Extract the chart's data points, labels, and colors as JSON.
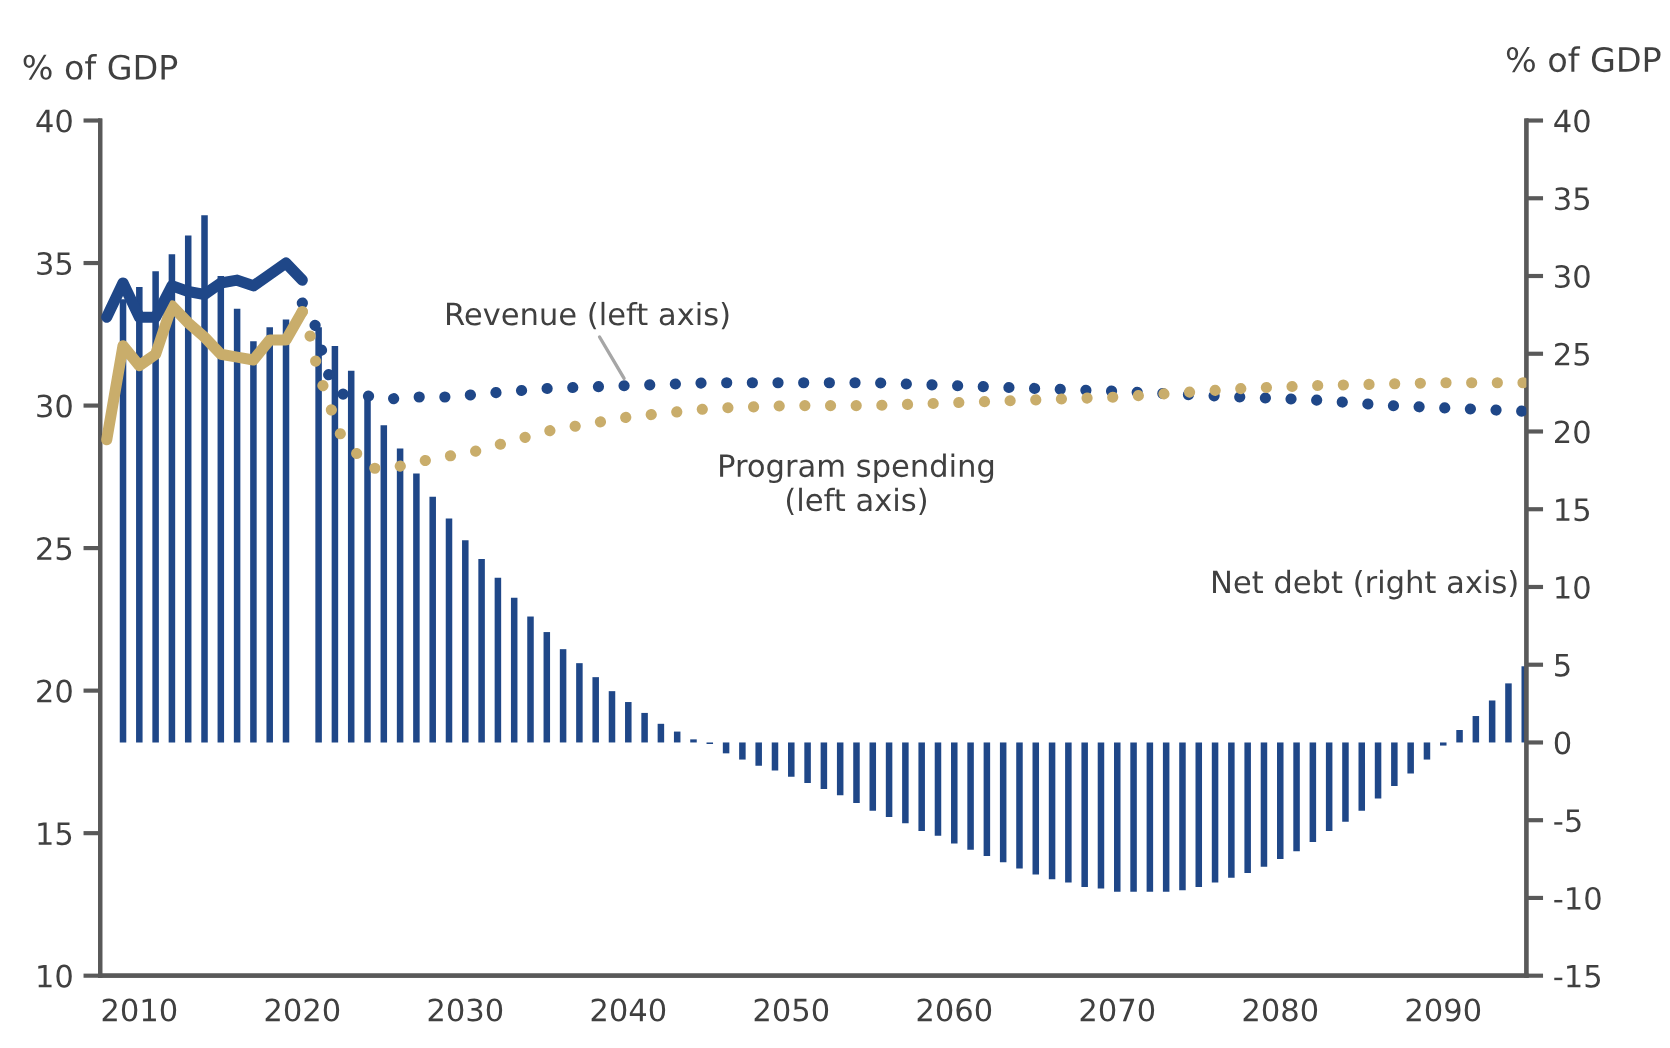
{
  "chart_data": {
    "type": "line",
    "ylabel": "% of GDP",
    "y2label": "% of GDP",
    "xlim": [
      2007.6,
      2095.1
    ],
    "xticks": [
      2010,
      2020,
      2030,
      2040,
      2050,
      2060,
      2070,
      2080,
      2090
    ],
    "ylim": [
      10,
      40
    ],
    "yticks": [
      10,
      15,
      20,
      25,
      30,
      35,
      40
    ],
    "y2lim": [
      -15,
      40
    ],
    "y2ticks": [
      -15,
      -10,
      -5,
      0,
      5,
      10,
      15,
      20,
      25,
      30,
      35,
      40
    ],
    "grid": false,
    "legend": false,
    "marker": "none",
    "series": [
      {
        "name": "Net debt (right axis)",
        "type": "bar",
        "axis": "y2",
        "color": "#1f4788",
        "x": [
          2009,
          2010,
          2011,
          2012,
          2013,
          2014,
          2015,
          2016,
          2017,
          2018,
          2019,
          2020,
          2021,
          2022,
          2023,
          2024,
          2025,
          2026,
          2027,
          2028,
          2029,
          2030,
          2031,
          2032,
          2033,
          2034,
          2035,
          2036,
          2037,
          2038,
          2039,
          2040,
          2041,
          2042,
          2043,
          2044,
          2045,
          2046,
          2047,
          2048,
          2049,
          2050,
          2051,
          2052,
          2053,
          2054,
          2055,
          2056,
          2057,
          2058,
          2059,
          2060,
          2061,
          2062,
          2063,
          2064,
          2065,
          2066,
          2067,
          2068,
          2069,
          2070,
          2071,
          2072,
          2073,
          2074,
          2075,
          2076,
          2077,
          2078,
          2079,
          2080,
          2081,
          2082,
          2083,
          2084,
          2085,
          2086,
          2087,
          2088,
          2089,
          2090,
          2091,
          2092,
          2093,
          2094,
          2095
        ],
        "values": [
          28.5,
          29.3,
          30.3,
          31.4,
          32.6,
          33.9,
          30.0,
          27.9,
          25.8,
          26.7,
          27.2,
          null,
          26.7,
          25.5,
          23.9,
          22.1,
          20.4,
          18.9,
          17.3,
          15.8,
          14.4,
          13.0,
          11.8,
          10.6,
          9.3,
          8.1,
          7.1,
          6.0,
          5.1,
          4.2,
          3.3,
          2.6,
          1.9,
          1.2,
          0.7,
          0.2,
          -0.1,
          -0.7,
          -1.1,
          -1.5,
          -1.8,
          -2.2,
          -2.6,
          -3.0,
          -3.4,
          -3.9,
          -4.4,
          -4.8,
          -5.2,
          -5.7,
          -6.0,
          -6.5,
          -6.9,
          -7.3,
          -7.7,
          -8.1,
          -8.5,
          -8.8,
          -9.0,
          -9.3,
          -9.4,
          -9.6,
          -9.6,
          -9.6,
          -9.6,
          -9.5,
          -9.3,
          -9.0,
          -8.7,
          -8.4,
          -8.0,
          -7.5,
          -7.0,
          -6.4,
          -5.7,
          -5.1,
          -4.4,
          -3.6,
          -2.8,
          -2.0,
          -1.1,
          -0.2,
          0.8,
          1.7,
          2.7,
          3.8,
          4.9
        ]
      },
      {
        "line_style": "solid",
        "color": "#c9ad6b",
        "x": [
          2008,
          2009,
          2010,
          2011,
          2012,
          2013,
          2014,
          2015,
          2016,
          2017,
          2018,
          2019,
          2020
        ],
        "values": [
          28.8,
          32.1,
          31.4,
          31.8,
          33.5,
          32.9,
          32.4,
          31.8,
          31.7,
          31.6,
          32.3,
          32.3,
          33.3
        ]
      },
      {
        "line_style": "solid",
        "color": "#1f4788",
        "x": [
          2008,
          2009,
          2010,
          2011,
          2012,
          2013,
          2014,
          2015,
          2016,
          2017,
          2018,
          2019,
          2020
        ],
        "values": [
          33.1,
          34.3,
          33.1,
          33.1,
          34.2,
          34.0,
          33.9,
          34.3,
          34.4,
          34.2,
          34.6,
          35.0,
          34.4
        ]
      },
      {
        "name": "Revenue (left axis)",
        "line_style": "dotted",
        "color": "#1f4788",
        "x": [
          2020,
          2020.8,
          2021.2,
          2021.6,
          2022.3,
          2023.6,
          2025,
          2026.4,
          2028,
          2029.3,
          2030.7,
          2035,
          2040,
          2045,
          2050,
          2055,
          2060,
          2065,
          2070,
          2077.5,
          2082,
          2086.7,
          2095
        ],
        "values": [
          33.6,
          32.8,
          31.9,
          31.1,
          30.4,
          30.4,
          30.2,
          30.3,
          30.3,
          30.3,
          30.4,
          30.6,
          30.7,
          30.8,
          30.8,
          30.8,
          30.7,
          30.6,
          30.5,
          30.3,
          30.2,
          30.0,
          29.8
        ]
      },
      {
        "name": "Program spending\n(left axis)",
        "line_style": "dotted",
        "color": "#c9ad6b",
        "x": [
          2020,
          2020.5,
          2020.8,
          2021.2,
          2021.7,
          2022.2,
          2023.1,
          2024,
          2025.4,
          2027,
          2028.5,
          2030,
          2035,
          2040,
          2045,
          2050,
          2055,
          2060,
          2065,
          2070,
          2077.7,
          2082,
          2089.8,
          2095
        ],
        "values": [
          33.3,
          32.4,
          31.6,
          30.8,
          30.0,
          29.1,
          28.5,
          27.8,
          27.8,
          28.0,
          28.2,
          28.3,
          29.1,
          29.6,
          29.9,
          30.0,
          30.0,
          30.1,
          30.2,
          30.3,
          30.6,
          30.7,
          30.8,
          30.8
        ]
      }
    ]
  }
}
